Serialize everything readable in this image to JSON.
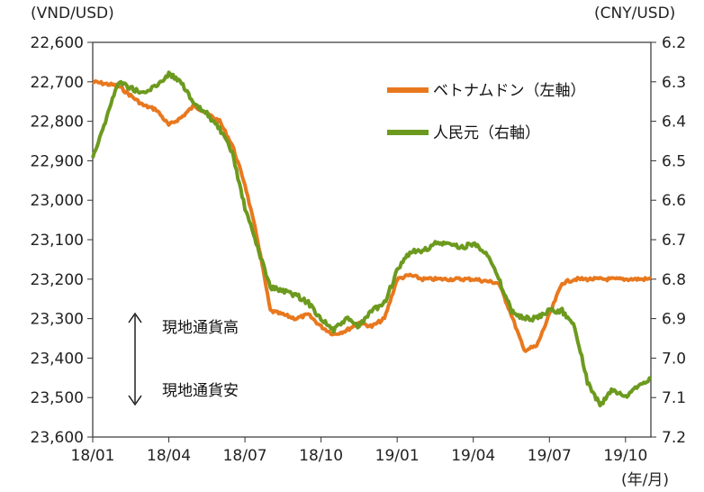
{
  "chart_data": {
    "type": "line",
    "left_axis": {
      "unit_label": "(VND/USD)",
      "min": 22600,
      "max": 23600,
      "inverted": true,
      "ticks": [
        "22,600",
        "22,700",
        "22,800",
        "22,900",
        "23,000",
        "23,100",
        "23,200",
        "23,300",
        "23,400",
        "23,500",
        "23,600"
      ]
    },
    "right_axis": {
      "unit_label": "(CNY/USD)",
      "min": 6.2,
      "max": 7.2,
      "inverted": true,
      "ticks": [
        "6.2",
        "6.3",
        "6.4",
        "6.5",
        "6.6",
        "6.7",
        "6.8",
        "6.9",
        "7.0",
        "7.1",
        "7.2"
      ]
    },
    "x_axis": {
      "unit_label": "(年/月)",
      "start_month": "18/01",
      "end_month": "19/11",
      "ticks": [
        "18/01",
        "18/04",
        "18/07",
        "18/10",
        "19/01",
        "19/04",
        "19/07",
        "19/10"
      ]
    },
    "series": [
      {
        "name": "ベトナムドン（左軸）",
        "axis": "left",
        "color": "#e8781e",
        "points": [
          [
            "18/01",
            22700
          ],
          [
            "18/02",
            22710
          ],
          [
            "18/03",
            22760
          ],
          [
            "18/03.5",
            22770
          ],
          [
            "18/04",
            22810
          ],
          [
            "18/04.5",
            22790
          ],
          [
            "18/05",
            22760
          ],
          [
            "18/05.5",
            22780
          ],
          [
            "18/06",
            22800
          ],
          [
            "18/06.5",
            22860
          ],
          [
            "18/07",
            22960
          ],
          [
            "18/07.5",
            23100
          ],
          [
            "18/08",
            23280
          ],
          [
            "18/08.5",
            23290
          ],
          [
            "18/09",
            23300
          ],
          [
            "18/09.5",
            23290
          ],
          [
            "18/10",
            23320
          ],
          [
            "18/10.5",
            23340
          ],
          [
            "18/11",
            23330
          ],
          [
            "18/11.5",
            23310
          ],
          [
            "18/12",
            23320
          ],
          [
            "18/12.5",
            23300
          ],
          [
            "19/01",
            23200
          ],
          [
            "19/01.5",
            23190
          ],
          [
            "19/02",
            23200
          ],
          [
            "19/03",
            23200
          ],
          [
            "19/04",
            23200
          ],
          [
            "19/05",
            23210
          ],
          [
            "19/05.5",
            23290
          ],
          [
            "19/06",
            23380
          ],
          [
            "19/06.5",
            23370
          ],
          [
            "19/07",
            23290
          ],
          [
            "19/07.5",
            23210
          ],
          [
            "19/08",
            23200
          ],
          [
            "19/09",
            23200
          ],
          [
            "19/10",
            23200
          ],
          [
            "19/11",
            23200
          ]
        ]
      },
      {
        "name": "人民元（右軸）",
        "axis": "right",
        "color": "#6c9a1e",
        "points": [
          [
            "18/01",
            6.49
          ],
          [
            "18/01.5",
            6.4
          ],
          [
            "18/02",
            6.3
          ],
          [
            "18/03",
            6.33
          ],
          [
            "18/03.5",
            6.31
          ],
          [
            "18/04",
            6.28
          ],
          [
            "18/04.5",
            6.3
          ],
          [
            "18/05",
            6.36
          ],
          [
            "18/05.5",
            6.38
          ],
          [
            "18/06",
            6.42
          ],
          [
            "18/06.5",
            6.48
          ],
          [
            "18/07",
            6.62
          ],
          [
            "18/07.5",
            6.72
          ],
          [
            "18/08",
            6.82
          ],
          [
            "18/08.5",
            6.83
          ],
          [
            "18/09",
            6.84
          ],
          [
            "18/09.5",
            6.86
          ],
          [
            "18/10",
            6.9
          ],
          [
            "18/10.5",
            6.93
          ],
          [
            "18/11",
            6.9
          ],
          [
            "18/11.5",
            6.92
          ],
          [
            "18/12",
            6.88
          ],
          [
            "18/12.5",
            6.86
          ],
          [
            "19/01",
            6.78
          ],
          [
            "19/01.5",
            6.73
          ],
          [
            "19/02",
            6.73
          ],
          [
            "19/02.5",
            6.71
          ],
          [
            "19/03",
            6.71
          ],
          [
            "19/03.5",
            6.72
          ],
          [
            "19/04",
            6.71
          ],
          [
            "19/04.5",
            6.73
          ],
          [
            "19/05",
            6.8
          ],
          [
            "19/05.5",
            6.88
          ],
          [
            "19/06",
            6.9
          ],
          [
            "19/06.5",
            6.9
          ],
          [
            "19/07",
            6.88
          ],
          [
            "19/07.5",
            6.88
          ],
          [
            "19/08",
            6.92
          ],
          [
            "19/08.5",
            7.06
          ],
          [
            "19/09",
            7.12
          ],
          [
            "19/09.5",
            7.08
          ],
          [
            "19/10",
            7.1
          ],
          [
            "19/10.5",
            7.07
          ],
          [
            "19/11",
            7.05
          ]
        ]
      }
    ],
    "annotations": {
      "up_label": "現地通貨高",
      "down_label": "現地通貨安"
    },
    "grid": false,
    "legend_position": "top-right"
  }
}
